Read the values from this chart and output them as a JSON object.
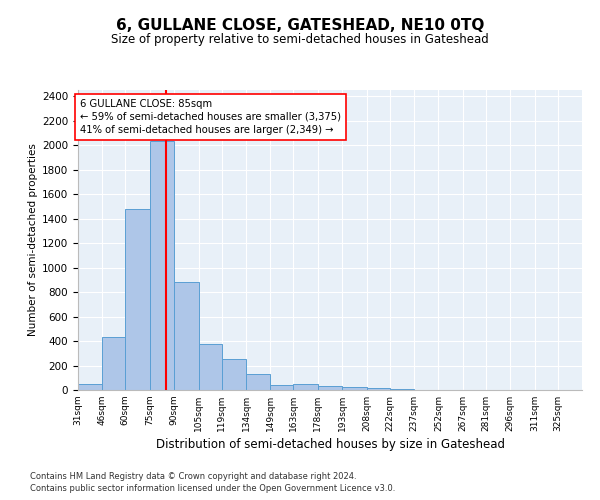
{
  "title": "6, GULLANE CLOSE, GATESHEAD, NE10 0TQ",
  "subtitle": "Size of property relative to semi-detached houses in Gateshead",
  "xlabel": "Distribution of semi-detached houses by size in Gateshead",
  "ylabel": "Number of semi-detached properties",
  "bin_labels": [
    "31sqm",
    "46sqm",
    "60sqm",
    "75sqm",
    "90sqm",
    "105sqm",
    "119sqm",
    "134sqm",
    "149sqm",
    "163sqm",
    "178sqm",
    "193sqm",
    "208sqm",
    "222sqm",
    "237sqm",
    "252sqm",
    "267sqm",
    "281sqm",
    "296sqm",
    "311sqm",
    "325sqm"
  ],
  "bin_edges": [
    31,
    46,
    60,
    75,
    90,
    105,
    119,
    134,
    149,
    163,
    178,
    193,
    208,
    222,
    237,
    252,
    267,
    281,
    296,
    311,
    325,
    340
  ],
  "bar_heights": [
    45,
    435,
    1480,
    2030,
    880,
    375,
    255,
    130,
    40,
    45,
    30,
    25,
    20,
    10,
    0,
    0,
    0,
    0,
    0,
    0,
    0
  ],
  "bar_color": "#aec6e8",
  "bar_edgecolor": "#5a9fd4",
  "property_size": 85,
  "vline_color": "red",
  "annotation_text": "6 GULLANE CLOSE: 85sqm\n← 59% of semi-detached houses are smaller (3,375)\n41% of semi-detached houses are larger (2,349) →",
  "annotation_boxcolor": "white",
  "annotation_edgecolor": "red",
  "ylim": [
    0,
    2450
  ],
  "yticks": [
    0,
    200,
    400,
    600,
    800,
    1000,
    1200,
    1400,
    1600,
    1800,
    2000,
    2200,
    2400
  ],
  "background_color": "#e8f0f8",
  "grid_color": "white",
  "footer1": "Contains HM Land Registry data © Crown copyright and database right 2024.",
  "footer2": "Contains public sector information licensed under the Open Government Licence v3.0."
}
